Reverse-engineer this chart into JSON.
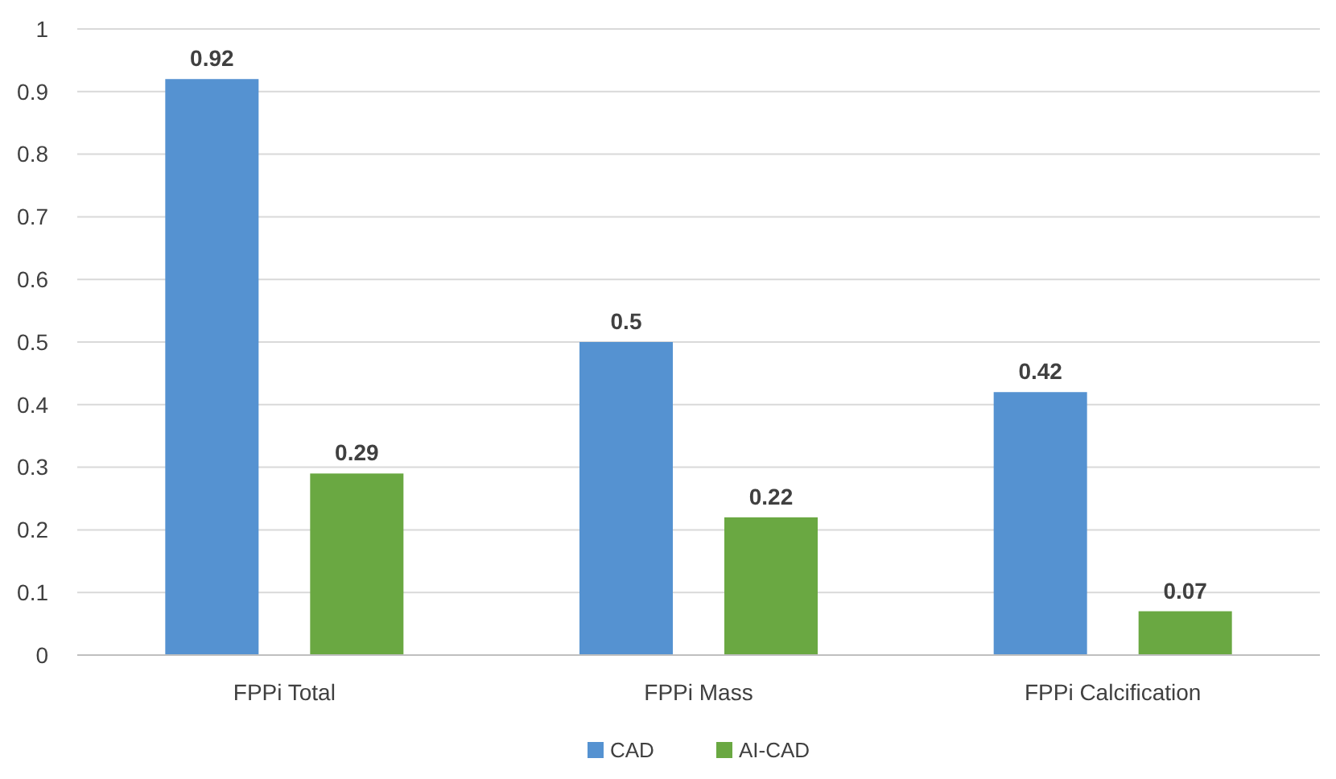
{
  "chart_data": {
    "type": "bar",
    "categories": [
      "FPPi Total",
      "FPPi Mass",
      "FPPi Calcification"
    ],
    "series": [
      {
        "name": "CAD",
        "color": "#5592d1",
        "values": [
          0.92,
          0.5,
          0.42
        ]
      },
      {
        "name": "AI-CAD",
        "color": "#6aa842",
        "values": [
          0.29,
          0.22,
          0.07
        ]
      }
    ],
    "ylim": [
      0,
      1
    ],
    "yticks": [
      0,
      0.1,
      0.2,
      0.3,
      0.4,
      0.5,
      0.6,
      0.7,
      0.8,
      0.9,
      1
    ],
    "grid": "y",
    "legend": "bottom",
    "data_labels": true
  }
}
